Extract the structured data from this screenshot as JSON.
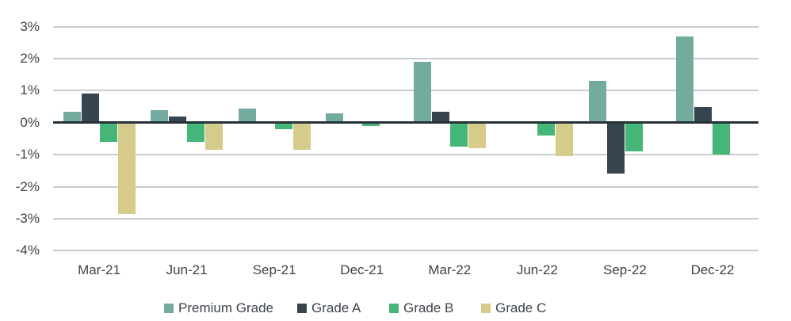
{
  "chart_data": {
    "type": "bar",
    "title": "",
    "categories": [
      "Mar-21",
      "Jun-21",
      "Sep-21",
      "Dec-21",
      "Mar-22",
      "Jun-22",
      "Sep-22",
      "Dec-22"
    ],
    "series": [
      {
        "name": "Premium Grade",
        "color": "#73ab9e",
        "values": [
          0.35,
          0.4,
          0.45,
          0.3,
          1.9,
          0,
          1.3,
          2.7
        ]
      },
      {
        "name": "Grade A",
        "color": "#36454f",
        "values": [
          0.9,
          0.2,
          0,
          0,
          0.35,
          0,
          -1.6,
          0.5
        ]
      },
      {
        "name": "Grade B",
        "color": "#45b578",
        "values": [
          -0.6,
          -0.6,
          -0.2,
          -0.1,
          -0.75,
          -0.4,
          -0.9,
          -1.0
        ]
      },
      {
        "name": "Grade C",
        "color": "#d5cc8c",
        "values": [
          -2.85,
          -0.85,
          -0.85,
          0,
          -0.8,
          -1.05,
          0,
          0
        ]
      }
    ],
    "y_axis": {
      "unit": "%",
      "min": -4,
      "max": 3,
      "tick_values": [
        3,
        2,
        1,
        0,
        -1,
        -2,
        -3,
        -4
      ],
      "tick_labels": [
        "3%",
        "2%",
        "1%",
        "0%",
        "-1%",
        "-2%",
        "-3%",
        "-4%"
      ]
    },
    "x_axis": {
      "tick_labels": [
        "Mar-21",
        "Jun-21",
        "Sep-21",
        "Dec-21",
        "Mar-22",
        "Jun-22",
        "Sep-22",
        "Dec-22"
      ]
    },
    "legend": {
      "position": "bottom",
      "entries": [
        "Premium Grade",
        "Grade A",
        "Grade B",
        "Grade C"
      ]
    },
    "grid": true,
    "colors": {
      "gridline": "#c7ccd1",
      "zero_axis": "#263238",
      "text": "#3d4349",
      "background": "#ffffff"
    }
  }
}
